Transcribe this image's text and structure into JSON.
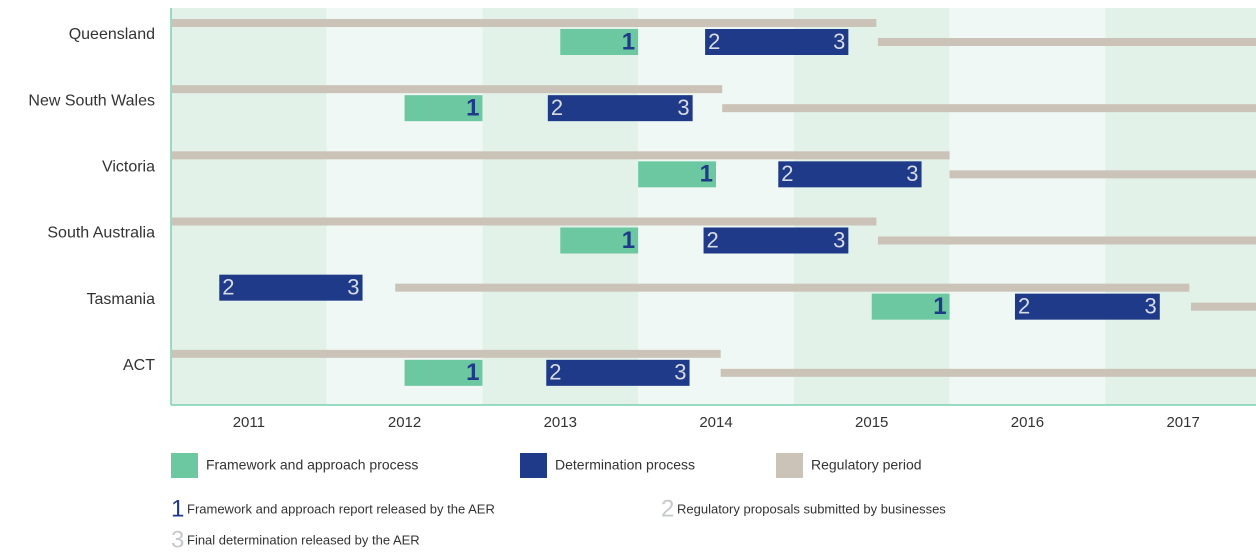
{
  "chart_data": {
    "type": "gantt",
    "categories": [
      "Queensland",
      "New South Wales",
      "Victoria",
      "South Australia",
      "Tasmania",
      "ACT"
    ],
    "xlim": [
      2011,
      2018
    ],
    "xticks": [
      2011,
      2012,
      2013,
      2014,
      2015,
      2016,
      2017
    ],
    "grid": true,
    "series": [
      {
        "name": "Framework and approach process",
        "color": "#6cc8a0",
        "values": [
          [
            [
              2013.5,
              2014.0
            ]
          ],
          [
            [
              2012.5,
              2013.0
            ]
          ],
          [
            [
              2014.0,
              2014.5
            ]
          ],
          [
            [
              2013.5,
              2014.0
            ]
          ],
          [
            [
              2015.5,
              2016.0
            ]
          ],
          [
            [
              2012.5,
              2013.0
            ]
          ]
        ]
      },
      {
        "name": "Determination process",
        "color": "#1f3a88",
        "values": [
          [
            [
              2014.43,
              2015.35
            ]
          ],
          [
            [
              2013.42,
              2014.35
            ]
          ],
          [
            [
              2014.9,
              2015.82
            ]
          ],
          [
            [
              2014.42,
              2015.35
            ]
          ],
          [
            [
              2011.31,
              2012.23
            ],
            [
              2016.42,
              2017.35
            ]
          ],
          [
            [
              2013.41,
              2014.33
            ]
          ]
        ]
      },
      {
        "name": "Regulatory period",
        "color": "#cbc3b7",
        "values": [
          [
            [
              2011,
              2015.53
            ],
            [
              2015.54,
              2018
            ]
          ],
          [
            [
              2011,
              2014.54
            ],
            [
              2014.54,
              2018
            ]
          ],
          [
            [
              2011,
              2016.0
            ],
            [
              2016.0,
              2018
            ]
          ],
          [
            [
              2011,
              2015.53
            ],
            [
              2015.54,
              2018
            ]
          ],
          [
            [
              2012.44,
              2017.54
            ],
            [
              2017.55,
              2018
            ]
          ],
          [
            [
              2011,
              2014.53
            ],
            [
              2014.53,
              2018
            ]
          ]
        ]
      }
    ],
    "milestones": [
      {
        "symbol": "1",
        "label": "Framework and approach report released by the AER"
      },
      {
        "symbol": "2",
        "label": "Regulatory proposals submitted by businesses"
      },
      {
        "symbol": "3",
        "label": "Final determination released by the AER"
      }
    ]
  }
}
